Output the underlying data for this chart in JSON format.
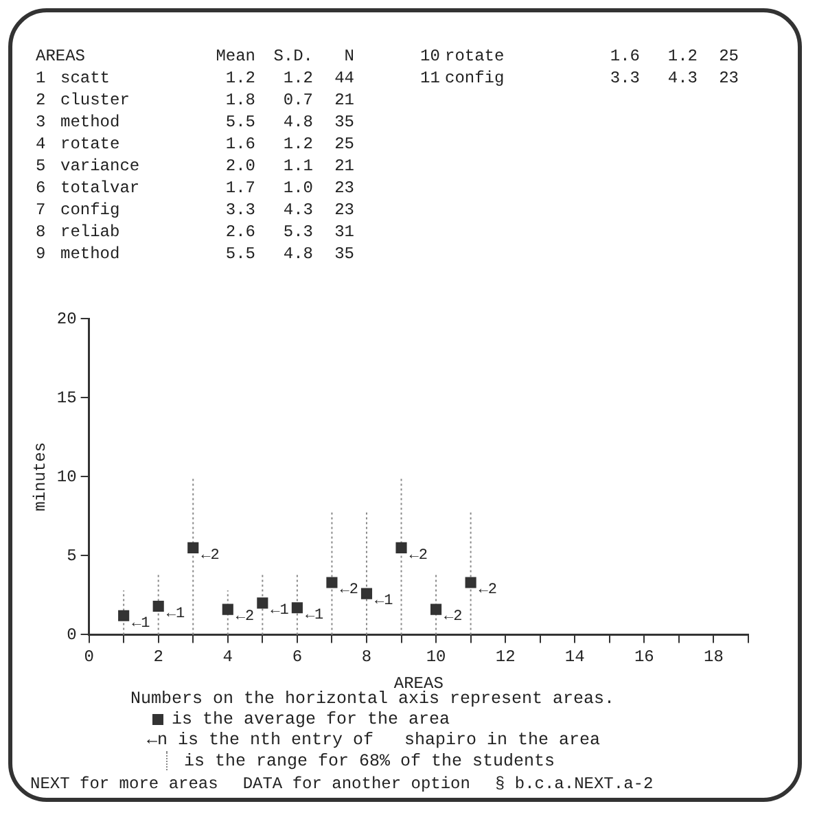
{
  "chart_data": {
    "type": "scatter",
    "xlabel": "AREAS",
    "ylabel": "minutes",
    "x": [
      1,
      2,
      3,
      4,
      5,
      6,
      7,
      8,
      9,
      10,
      11
    ],
    "values": [
      1.2,
      1.8,
      5.5,
      1.6,
      2.0,
      1.7,
      3.3,
      2.6,
      5.5,
      1.6,
      3.3
    ],
    "errors": [
      [
        0,
        2.8
      ],
      [
        0,
        3.8
      ],
      [
        0,
        9.9
      ],
      [
        0,
        2.8
      ],
      [
        0,
        3.9
      ],
      [
        0,
        3.9
      ],
      [
        0,
        7.9
      ],
      [
        0,
        7.9
      ],
      [
        0,
        9.9
      ],
      [
        0,
        3.8
      ],
      [
        0,
        7.9
      ]
    ],
    "color": "#333333",
    "marker": "square",
    "grid": false,
    "xlim": [
      0,
      19
    ],
    "xticks": [
      0,
      {
        "value": 1,
        "label": null
      },
      2,
      {
        "value": 3,
        "label": null
      },
      4,
      {
        "value": 5,
        "label": null
      },
      6,
      {
        "value": 7,
        "label": null
      },
      8,
      {
        "value": 9,
        "label": null
      },
      10,
      {
        "value": 11,
        "label": null
      },
      12,
      {
        "value": 13,
        "label": null
      },
      14,
      {
        "value": 15,
        "label": null
      },
      16,
      {
        "value": 17,
        "label": null
      },
      18,
      {
        "value": 19,
        "label": null
      }
    ],
    "ylim": [
      0,
      20
    ],
    "yticks": [
      0,
      5,
      10,
      15,
      20
    ],
    "annotations": [
      "AREAS\t\tMean\tS.D.\tN",
      "1\tscatt\t1.2\t1.2\t44",
      "2\tcluster\t1.8\t0.7\t21",
      "3\tmethod\t5.5\t4.8\t35",
      "4\trotate\t1.6\t1.2\t25",
      "5\tvariance\t2.0\t1.1\t21",
      "6\ttotalvar\t1.7\t1.0\t23",
      "7\tconfig\t3.3\t4.3\t23",
      "8\treliab\t2.6\t5.3\t31",
      "9\tmethod\t5.5\t4.8\t35",
      "10\trotate\t1.6\t1.2\t25",
      "11\tconfig\t3.3\t4.3\t23",
      {
        "text": "←1",
        "x": 1,
        "y": 1.2
      },
      {
        "text": "←1",
        "x": 2,
        "y": 1.8
      },
      {
        "text": "←2",
        "x": 3,
        "y": 5.5
      },
      {
        "text": "←2",
        "x": 4,
        "y": 1.6
      },
      {
        "text": "←1",
        "x": 5,
        "y": 2.0
      },
      {
        "text": "←1",
        "x": 6,
        "y": 1.7
      },
      {
        "text": "←2",
        "x": 7,
        "y": 3.3
      },
      {
        "text": "←1",
        "x": 8,
        "y": 2.6
      },
      {
        "text": "←2",
        "x": 9,
        "y": 5.5
      },
      {
        "text": "←2",
        "x": 10,
        "y": 1.6
      },
      {
        "text": "←2",
        "x": 11,
        "y": 3.3
      },
      "Numbers on the horizontal axis represent areas.",
      "is the average for the area",
      "←n is the nth entry of   shapiro in the area",
      "is the range for 68% of the students",
      "NEXT for more areas",
      "DATA for another option",
      "§ b.c.a.NEXT.a-2"
    ]
  }
}
